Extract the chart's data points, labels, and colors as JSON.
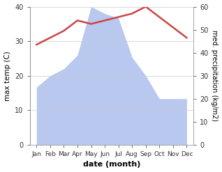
{
  "months": [
    "Jan",
    "Feb",
    "Mar",
    "Apr",
    "May",
    "Jun",
    "Jul",
    "Aug",
    "Sep",
    "Oct",
    "Nov",
    "Dec"
  ],
  "temperature": [
    29,
    31,
    33,
    36,
    35,
    36,
    37,
    38,
    40,
    37,
    34,
    31
  ],
  "precipitation": [
    25,
    30,
    33,
    39,
    60,
    57,
    55,
    38,
    30,
    20,
    20,
    20
  ],
  "temp_color": "#cc4444",
  "precip_color": "#b8c8ee",
  "title": "",
  "xlabel": "date (month)",
  "ylabel_left": "max temp (C)",
  "ylabel_right": "med. precipitation (kg/m2)",
  "ylim_left": [
    0,
    40
  ],
  "ylim_right": [
    0,
    60
  ],
  "yticks_left": [
    0,
    10,
    20,
    30,
    40
  ],
  "yticks_right": [
    0,
    10,
    20,
    30,
    40,
    50,
    60
  ],
  "background_color": "#ffffff",
  "grid_color": "#cccccc",
  "temp_linewidth": 1.8,
  "figsize": [
    3.18,
    2.47
  ],
  "dpi": 100
}
